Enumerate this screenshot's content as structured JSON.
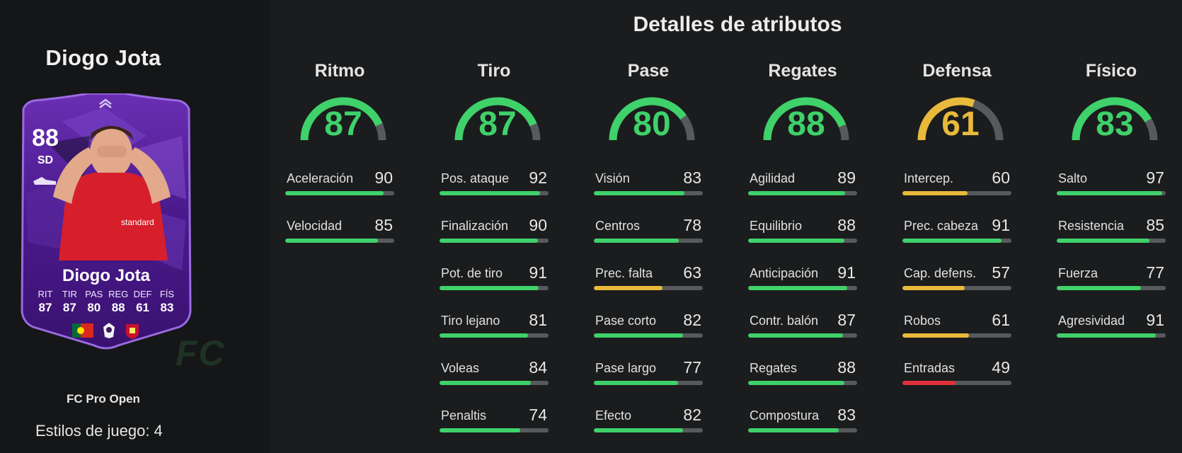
{
  "player": {
    "name": "Diogo Jota",
    "card_type": "FC Pro Open",
    "styles_label": "Estilos de juego:",
    "styles_count": "4"
  },
  "card": {
    "overall": "88",
    "position": "SD",
    "name": "Diogo Jota",
    "attrs": [
      {
        "label": "RIT",
        "value": "87"
      },
      {
        "label": "TIR",
        "value": "87"
      },
      {
        "label": "PAS",
        "value": "80"
      },
      {
        "label": "REG",
        "value": "88"
      },
      {
        "label": "DEF",
        "value": "61"
      },
      {
        "label": "FÍS",
        "value": "83"
      }
    ],
    "badges": [
      "portugal-flag-icon",
      "premier-league-icon",
      "liverpool-crest-icon"
    ]
  },
  "watermark": "FC",
  "main_title": "Detalles de atributos",
  "colors": {
    "green": "#3fd16a",
    "yellow": "#e8b93b",
    "red": "#e0303a",
    "track": "#575a5c"
  },
  "categories": [
    {
      "name": "Ritmo",
      "value": 87,
      "stats": [
        {
          "name": "Aceleración",
          "value": 90
        },
        {
          "name": "Velocidad",
          "value": 85
        }
      ]
    },
    {
      "name": "Tiro",
      "value": 87,
      "stats": [
        {
          "name": "Pos. ataque",
          "value": 92
        },
        {
          "name": "Finalización",
          "value": 90
        },
        {
          "name": "Pot. de tiro",
          "value": 91
        },
        {
          "name": "Tiro lejano",
          "value": 81
        },
        {
          "name": "Voleas",
          "value": 84
        },
        {
          "name": "Penaltis",
          "value": 74
        }
      ]
    },
    {
      "name": "Pase",
      "value": 80,
      "stats": [
        {
          "name": "Visión",
          "value": 83
        },
        {
          "name": "Centros",
          "value": 78
        },
        {
          "name": "Prec. falta",
          "value": 63
        },
        {
          "name": "Pase corto",
          "value": 82
        },
        {
          "name": "Pase largo",
          "value": 77
        },
        {
          "name": "Efecto",
          "value": 82
        }
      ]
    },
    {
      "name": "Regates",
      "value": 88,
      "stats": [
        {
          "name": "Agilidad",
          "value": 89
        },
        {
          "name": "Equilibrio",
          "value": 88
        },
        {
          "name": "Anticipación",
          "value": 91
        },
        {
          "name": "Contr. balón",
          "value": 87
        },
        {
          "name": "Regates",
          "value": 88
        },
        {
          "name": "Compostura",
          "value": 83
        }
      ]
    },
    {
      "name": "Defensa",
      "value": 61,
      "stats": [
        {
          "name": "Intercep.",
          "value": 60
        },
        {
          "name": "Prec. cabeza",
          "value": 91
        },
        {
          "name": "Cap. defens.",
          "value": 57
        },
        {
          "name": "Robos",
          "value": 61
        },
        {
          "name": "Entradas",
          "value": 49
        }
      ]
    },
    {
      "name": "Físico",
      "value": 83,
      "stats": [
        {
          "name": "Salto",
          "value": 97
        },
        {
          "name": "Resistencia",
          "value": 85
        },
        {
          "name": "Fuerza",
          "value": 77
        },
        {
          "name": "Agresividad",
          "value": 91
        }
      ]
    }
  ]
}
